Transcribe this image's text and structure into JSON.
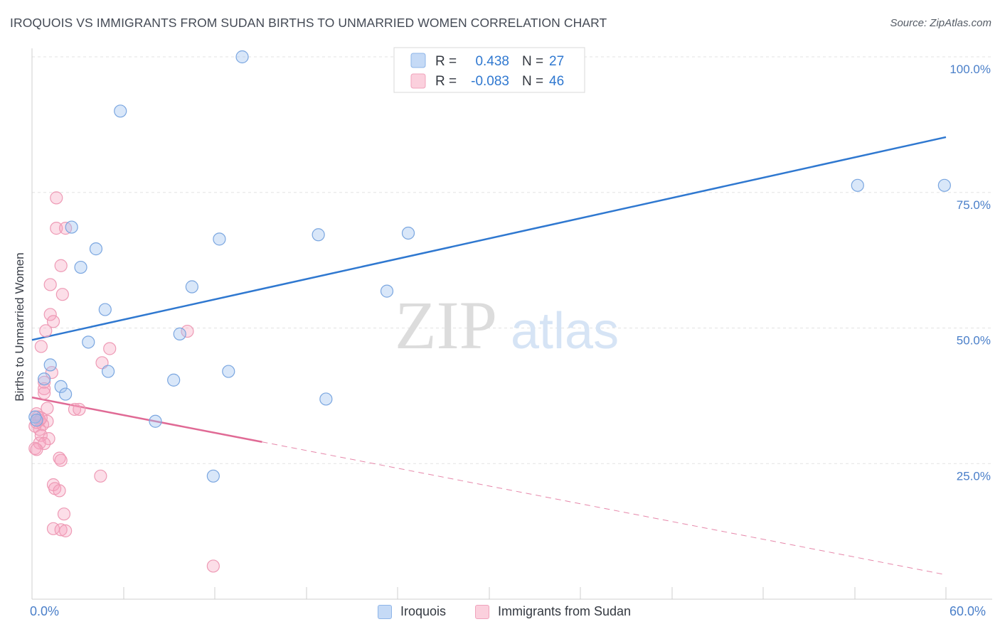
{
  "header": {
    "title": "IROQUOIS VS IMMIGRANTS FROM SUDAN BIRTHS TO UNMARRIED WOMEN CORRELATION CHART",
    "source": "Source: ZipAtlas.com"
  },
  "watermark": {
    "zip": "ZIP",
    "atlas": "atlas"
  },
  "legend_box": {
    "rows": [
      {
        "r_label": "R =",
        "r_value": "0.438",
        "n_label": "N =",
        "n_value": "27"
      },
      {
        "r_label": "R =",
        "r_value": "-0.083",
        "n_label": "N =",
        "n_value": "46"
      }
    ]
  },
  "chart_data": {
    "type": "scatter",
    "title": "IROQUOIS VS IMMIGRANTS FROM SUDAN BIRTHS TO UNMARRIED WOMEN CORRELATION CHART",
    "xlabel": "",
    "ylabel": "Births to Unmarried Women",
    "xlim": [
      0,
      60
    ],
    "ylim": [
      0,
      100
    ],
    "x_tick_labels": [
      "0.0%",
      "60.0%"
    ],
    "y_tick_labels": [
      "25.0%",
      "50.0%",
      "75.0%",
      "100.0%"
    ],
    "y_ticks": [
      25,
      50,
      75,
      100
    ],
    "grid": true,
    "legend_position": "bottom",
    "colors": {
      "iroquois": "#6b9fe3",
      "sudan": "#f29bb6",
      "iroquois_line": "#2f78d0",
      "sudan_line": "#e06a95"
    },
    "series": [
      {
        "name": "Iroquois",
        "r": 0.438,
        "n": 27,
        "trend": {
          "x": [
            0,
            60
          ],
          "y": [
            47.8,
            85.2
          ]
        },
        "points": [
          [
            13.8,
            100.0
          ],
          [
            5.8,
            90.0
          ],
          [
            2.6,
            68.6
          ],
          [
            4.2,
            64.6
          ],
          [
            3.2,
            61.2
          ],
          [
            12.3,
            66.4
          ],
          [
            18.8,
            67.2
          ],
          [
            24.7,
            67.5
          ],
          [
            10.5,
            57.6
          ],
          [
            23.3,
            56.8
          ],
          [
            4.8,
            53.4
          ],
          [
            3.7,
            47.4
          ],
          [
            9.7,
            48.9
          ],
          [
            1.2,
            43.2
          ],
          [
            5.0,
            42.0
          ],
          [
            0.8,
            40.6
          ],
          [
            9.3,
            40.4
          ],
          [
            12.9,
            42.0
          ],
          [
            1.9,
            39.2
          ],
          [
            2.2,
            37.8
          ],
          [
            19.3,
            36.9
          ],
          [
            8.1,
            32.8
          ],
          [
            11.9,
            22.7
          ],
          [
            54.2,
            76.3
          ],
          [
            59.9,
            76.3
          ],
          [
            0.2,
            33.6
          ],
          [
            0.3,
            33.0
          ]
        ]
      },
      {
        "name": "Immigrants from Sudan",
        "r": -0.083,
        "n": 46,
        "trend_solid": {
          "x": [
            0,
            15.1
          ],
          "y": [
            37.2,
            29.0
          ]
        },
        "trend_dashed": {
          "x": [
            15.1,
            60
          ],
          "y": [
            29.0,
            4.5
          ]
        },
        "points": [
          [
            1.6,
            74.0
          ],
          [
            1.6,
            68.4
          ],
          [
            2.2,
            68.4
          ],
          [
            1.9,
            61.5
          ],
          [
            1.2,
            58.0
          ],
          [
            2.0,
            56.2
          ],
          [
            1.2,
            52.5
          ],
          [
            1.4,
            51.2
          ],
          [
            0.9,
            49.5
          ],
          [
            10.2,
            49.4
          ],
          [
            0.6,
            46.6
          ],
          [
            5.1,
            46.2
          ],
          [
            4.6,
            43.6
          ],
          [
            1.3,
            41.8
          ],
          [
            0.8,
            40.0
          ],
          [
            0.8,
            38.8
          ],
          [
            0.8,
            38.0
          ],
          [
            1.0,
            35.2
          ],
          [
            2.8,
            35.0
          ],
          [
            3.1,
            35.0
          ],
          [
            0.3,
            34.2
          ],
          [
            0.4,
            33.6
          ],
          [
            0.5,
            33.0
          ],
          [
            1.0,
            32.8
          ],
          [
            0.7,
            32.2
          ],
          [
            0.2,
            31.9
          ],
          [
            0.5,
            31.3
          ],
          [
            0.6,
            30.2
          ],
          [
            1.1,
            29.6
          ],
          [
            0.5,
            28.8
          ],
          [
            0.8,
            28.7
          ],
          [
            0.2,
            27.8
          ],
          [
            0.3,
            27.6
          ],
          [
            1.8,
            26.0
          ],
          [
            1.9,
            25.6
          ],
          [
            4.5,
            22.7
          ],
          [
            1.4,
            21.1
          ],
          [
            1.5,
            20.4
          ],
          [
            1.8,
            20.0
          ],
          [
            2.1,
            15.7
          ],
          [
            1.4,
            13.0
          ],
          [
            1.9,
            12.8
          ],
          [
            2.2,
            12.6
          ],
          [
            11.9,
            6.1
          ],
          [
            0.3,
            32.6
          ],
          [
            0.6,
            33.4
          ]
        ]
      }
    ]
  }
}
